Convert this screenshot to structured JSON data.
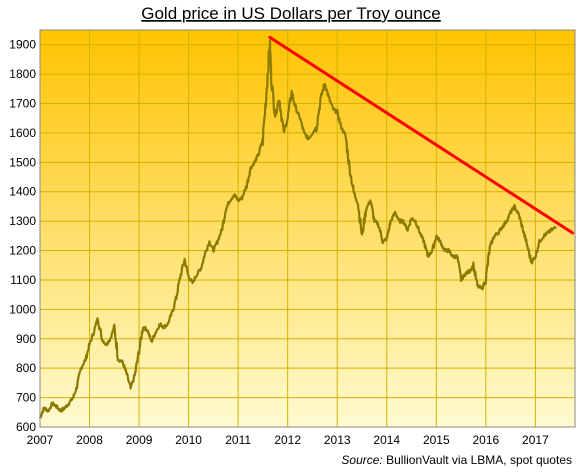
{
  "chart_data": {
    "type": "line",
    "title": "Gold price in US Dollars per Troy  ounce",
    "xlabel": "",
    "ylabel": "",
    "xlim": [
      2007,
      2017.8
    ],
    "ylim": [
      600,
      1950
    ],
    "x_ticks": [
      "2007",
      "2008",
      "2009",
      "2010",
      "2011",
      "2012",
      "2013",
      "2014",
      "2015",
      "2016",
      "2017"
    ],
    "y_ticks": [
      "600",
      "700",
      "800",
      "900",
      "1000",
      "1100",
      "1200",
      "1300",
      "1400",
      "1500",
      "1600",
      "1700",
      "1800",
      "1900"
    ],
    "grid": true,
    "background": "yellow-gradient",
    "colors": {
      "series": "#8b7a00",
      "trendline": "#ff0000",
      "bg_top": "#ffc300",
      "bg_bottom": "#fffbd0",
      "grid": "#d2b200"
    },
    "series": [
      {
        "x": [
          2007.0,
          2007.08,
          2007.17,
          2007.25,
          2007.33,
          2007.42,
          2007.5,
          2007.58,
          2007.67,
          2007.75,
          2007.83,
          2007.92,
          2008.0,
          2008.08,
          2008.17,
          2008.25,
          2008.33,
          2008.42,
          2008.5,
          2008.58,
          2008.67,
          2008.75,
          2008.83,
          2008.92,
          2009.0,
          2009.08,
          2009.17,
          2009.25,
          2009.33,
          2009.42,
          2009.5,
          2009.58,
          2009.67,
          2009.75,
          2009.83,
          2009.92,
          2010.0,
          2010.08,
          2010.17,
          2010.25,
          2010.33,
          2010.42,
          2010.5,
          2010.58,
          2010.67,
          2010.75,
          2010.83,
          2010.92,
          2011.0,
          2011.08,
          2011.17,
          2011.25,
          2011.33,
          2011.42,
          2011.5,
          2011.58,
          2011.64,
          2011.67,
          2011.75,
          2011.83,
          2011.92,
          2012.0,
          2012.08,
          2012.17,
          2012.25,
          2012.33,
          2012.42,
          2012.5,
          2012.58,
          2012.67,
          2012.75,
          2012.83,
          2012.92,
          2013.0,
          2013.08,
          2013.17,
          2013.25,
          2013.33,
          2013.42,
          2013.5,
          2013.58,
          2013.67,
          2013.75,
          2013.83,
          2013.92,
          2014.0,
          2014.08,
          2014.17,
          2014.25,
          2014.33,
          2014.42,
          2014.5,
          2014.58,
          2014.67,
          2014.75,
          2014.83,
          2014.92,
          2015.0,
          2015.08,
          2015.17,
          2015.25,
          2015.33,
          2015.42,
          2015.5,
          2015.58,
          2015.67,
          2015.75,
          2015.83,
          2015.92,
          2016.0,
          2016.08,
          2016.17,
          2016.25,
          2016.33,
          2016.42,
          2016.5,
          2016.58,
          2016.67,
          2016.75,
          2016.83,
          2016.92,
          2017.0,
          2017.08,
          2017.17,
          2017.25,
          2017.33,
          2017.42
        ],
        "y": [
          630,
          665,
          655,
          680,
          670,
          655,
          665,
          680,
          700,
          740,
          800,
          830,
          880,
          920,
          970,
          900,
          880,
          900,
          940,
          830,
          820,
          780,
          730,
          780,
          860,
          940,
          930,
          890,
          920,
          950,
          940,
          950,
          990,
          1040,
          1110,
          1170,
          1110,
          1090,
          1120,
          1140,
          1190,
          1230,
          1200,
          1230,
          1270,
          1340,
          1370,
          1390,
          1370,
          1380,
          1420,
          1480,
          1500,
          1530,
          1580,
          1760,
          1910,
          1780,
          1660,
          1720,
          1600,
          1650,
          1740,
          1680,
          1650,
          1600,
          1580,
          1600,
          1620,
          1720,
          1770,
          1720,
          1680,
          1670,
          1620,
          1590,
          1480,
          1400,
          1360,
          1250,
          1340,
          1370,
          1300,
          1290,
          1230,
          1240,
          1300,
          1330,
          1300,
          1300,
          1270,
          1310,
          1300,
          1260,
          1230,
          1180,
          1200,
          1250,
          1230,
          1200,
          1200,
          1180,
          1180,
          1100,
          1120,
          1130,
          1150,
          1080,
          1070,
          1100,
          1210,
          1250,
          1260,
          1280,
          1300,
          1330,
          1350,
          1320,
          1270,
          1220,
          1160,
          1180,
          1230,
          1250,
          1260,
          1270,
          1280
        ]
      }
    ],
    "trendline": {
      "x": [
        2011.64,
        2017.75
      ],
      "y": [
        1925,
        1260
      ]
    },
    "source": {
      "label": "Source:",
      "text": "BullionVault via LBMA, spot quotes"
    }
  }
}
